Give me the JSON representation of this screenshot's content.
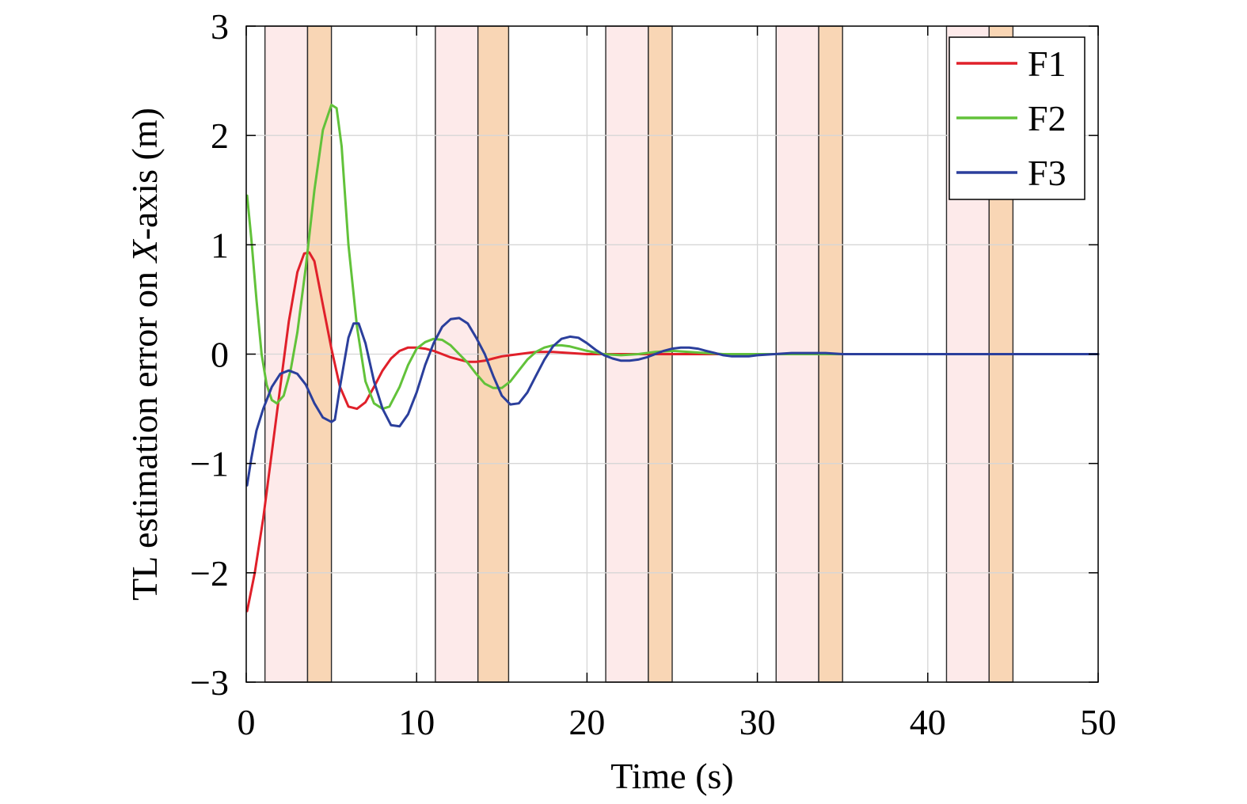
{
  "chart_data": {
    "type": "line",
    "xlabel": "Time (s)",
    "ylabel_parts": [
      {
        "text": "TL estimation error on ",
        "italic": false
      },
      {
        "text": "X",
        "italic": true
      },
      {
        "text": "-axis (m)",
        "italic": false
      }
    ],
    "xlim": [
      0,
      50
    ],
    "ylim": [
      -3,
      3
    ],
    "xticks": [
      0,
      10,
      20,
      30,
      40,
      50
    ],
    "xtick_labels": [
      "0",
      "10",
      "20",
      "30",
      "40",
      "50"
    ],
    "yticks": [
      -3,
      -2,
      -1,
      0,
      1,
      2,
      3
    ],
    "ytick_labels": [
      "−3",
      "−2",
      "−1",
      "0",
      "1",
      "2",
      "3"
    ],
    "grid": true,
    "legend_position": "top-right",
    "shaded_regions": [
      {
        "x0": 1.1,
        "x1": 3.6,
        "color": "#fdeaea"
      },
      {
        "x0": 3.6,
        "x1": 5.0,
        "color": "#f9d6b5"
      },
      {
        "x0": 11.1,
        "x1": 13.6,
        "color": "#fdeaea"
      },
      {
        "x0": 13.6,
        "x1": 15.4,
        "color": "#f9d6b5"
      },
      {
        "x0": 21.1,
        "x1": 23.6,
        "color": "#fdeaea"
      },
      {
        "x0": 23.6,
        "x1": 25.0,
        "color": "#f9d6b5"
      },
      {
        "x0": 31.1,
        "x1": 33.6,
        "color": "#fdeaea"
      },
      {
        "x0": 33.6,
        "x1": 35.0,
        "color": "#f9d6b5"
      },
      {
        "x0": 41.1,
        "x1": 43.6,
        "color": "#fdeaea"
      },
      {
        "x0": 43.6,
        "x1": 45.0,
        "color": "#f9d6b5"
      }
    ],
    "series": [
      {
        "name": "F1",
        "color": "#e0202a",
        "x": [
          0.05,
          0.5,
          1.0,
          1.5,
          2.0,
          2.5,
          3.0,
          3.4,
          3.7,
          4.0,
          4.5,
          5.0,
          5.5,
          6.0,
          6.5,
          7.0,
          7.5,
          8.0,
          8.5,
          9.0,
          9.5,
          10.0,
          10.5,
          11.0,
          11.5,
          12.0,
          12.5,
          13.0,
          13.5,
          14.0,
          14.5,
          15.0,
          16.0,
          17.0,
          18.0,
          19.0,
          20.0,
          22.0,
          24.0,
          26.0,
          28.0,
          30.0,
          35.0,
          40.0,
          50.0
        ],
        "y": [
          -2.35,
          -2.0,
          -1.5,
          -0.9,
          -0.3,
          0.3,
          0.75,
          0.92,
          0.93,
          0.85,
          0.45,
          0.05,
          -0.3,
          -0.48,
          -0.5,
          -0.44,
          -0.3,
          -0.15,
          -0.04,
          0.03,
          0.06,
          0.06,
          0.05,
          0.03,
          0.0,
          -0.03,
          -0.05,
          -0.07,
          -0.07,
          -0.06,
          -0.04,
          -0.02,
          0.0,
          0.02,
          0.02,
          0.01,
          0.0,
          0.0,
          0.0,
          0.0,
          0.0,
          0.0,
          0.0,
          0.0,
          0.0
        ]
      },
      {
        "name": "F2",
        "color": "#62c23a",
        "x": [
          0.05,
          0.3,
          0.6,
          0.9,
          1.2,
          1.5,
          1.8,
          2.2,
          2.6,
          3.0,
          3.5,
          4.0,
          4.5,
          5.0,
          5.3,
          5.6,
          6.0,
          6.5,
          7.0,
          7.5,
          8.0,
          8.4,
          9.0,
          9.5,
          10.0,
          10.5,
          11.0,
          11.5,
          12.0,
          12.5,
          13.0,
          13.5,
          14.0,
          14.5,
          15.0,
          15.5,
          16.0,
          16.5,
          17.0,
          17.5,
          18.0,
          18.5,
          19.0,
          19.5,
          20.0,
          21.0,
          22.0,
          23.0,
          24.0,
          25.0,
          26.0,
          27.0,
          28.0,
          30.0,
          35.0,
          40.0,
          50.0
        ],
        "y": [
          1.45,
          1.05,
          0.5,
          0.0,
          -0.28,
          -0.42,
          -0.45,
          -0.38,
          -0.15,
          0.2,
          0.8,
          1.5,
          2.05,
          2.28,
          2.25,
          1.9,
          1.0,
          0.25,
          -0.25,
          -0.45,
          -0.5,
          -0.48,
          -0.3,
          -0.1,
          0.05,
          0.11,
          0.14,
          0.13,
          0.08,
          0.0,
          -0.08,
          -0.18,
          -0.27,
          -0.31,
          -0.31,
          -0.25,
          -0.15,
          -0.05,
          0.02,
          0.06,
          0.08,
          0.08,
          0.07,
          0.05,
          0.03,
          0.0,
          -0.01,
          0.0,
          0.02,
          0.03,
          0.02,
          0.01,
          0.0,
          0.0,
          0.0,
          0.0,
          0.0
        ]
      },
      {
        "name": "F3",
        "color": "#2b3f9c",
        "x": [
          0.05,
          0.3,
          0.6,
          1.0,
          1.5,
          2.0,
          2.5,
          3.0,
          3.5,
          4.0,
          4.5,
          5.0,
          5.2,
          5.5,
          6.0,
          6.3,
          6.6,
          7.0,
          7.5,
          8.0,
          8.5,
          9.0,
          9.5,
          10.0,
          10.5,
          11.0,
          11.5,
          12.0,
          12.5,
          13.0,
          13.5,
          14.0,
          14.5,
          15.0,
          15.5,
          16.0,
          16.5,
          17.0,
          17.5,
          18.0,
          18.5,
          19.0,
          19.5,
          20.0,
          20.5,
          21.0,
          21.5,
          22.0,
          22.5,
          23.0,
          23.5,
          24.0,
          24.5,
          25.0,
          25.5,
          26.0,
          26.5,
          27.0,
          27.5,
          28.0,
          28.5,
          29.0,
          29.5,
          30.0,
          31.0,
          32.0,
          33.0,
          34.0,
          35.0,
          36.0,
          38.0,
          40.0,
          45.0,
          50.0
        ],
        "y": [
          -1.2,
          -0.95,
          -0.7,
          -0.5,
          -0.3,
          -0.18,
          -0.15,
          -0.18,
          -0.28,
          -0.45,
          -0.58,
          -0.62,
          -0.6,
          -0.3,
          0.15,
          0.28,
          0.28,
          0.1,
          -0.25,
          -0.5,
          -0.65,
          -0.66,
          -0.55,
          -0.35,
          -0.1,
          0.1,
          0.25,
          0.32,
          0.33,
          0.28,
          0.15,
          0.0,
          -0.2,
          -0.38,
          -0.46,
          -0.45,
          -0.35,
          -0.2,
          -0.05,
          0.07,
          0.14,
          0.16,
          0.15,
          0.1,
          0.04,
          -0.01,
          -0.04,
          -0.06,
          -0.06,
          -0.05,
          -0.03,
          0.0,
          0.03,
          0.05,
          0.06,
          0.06,
          0.05,
          0.03,
          0.01,
          -0.01,
          -0.02,
          -0.02,
          -0.02,
          -0.01,
          0.0,
          0.01,
          0.01,
          0.01,
          0.0,
          0.0,
          0.0,
          0.0,
          0.0,
          0.0
        ]
      }
    ]
  }
}
